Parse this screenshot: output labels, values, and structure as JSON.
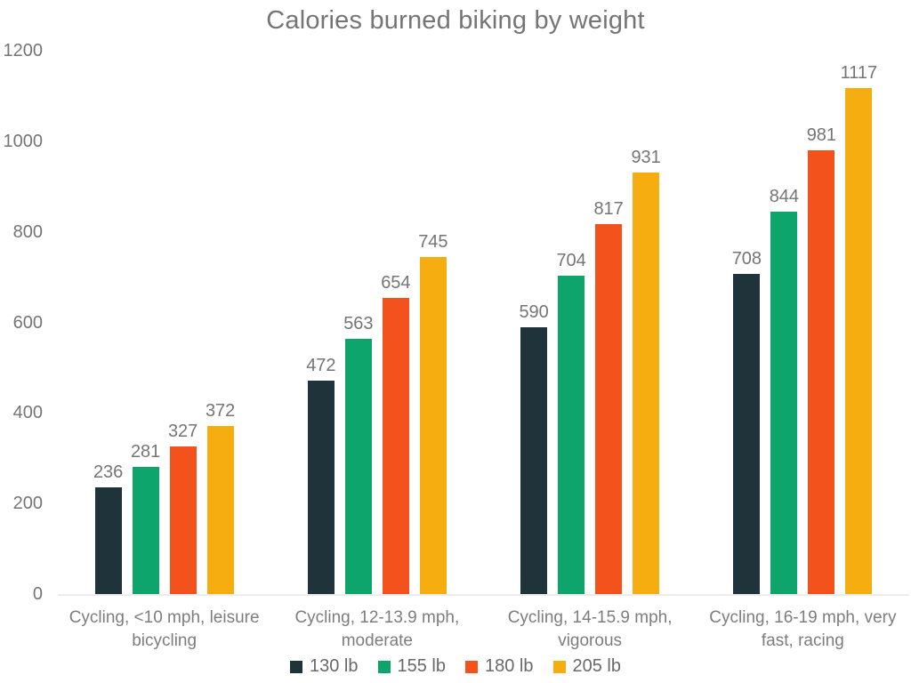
{
  "chart_data": {
    "type": "bar",
    "title": "Calories burned biking by weight",
    "categories": [
      "Cycling, <10 mph, leisure bicycling",
      "Cycling, 12-13.9 mph, moderate",
      "Cycling, 14-15.9 mph, vigorous",
      "Cycling, 16-19 mph, very fast, racing"
    ],
    "series": [
      {
        "name": "130 lb",
        "color": "#1e343a",
        "values": [
          236,
          472,
          590,
          708
        ]
      },
      {
        "name": "155 lb",
        "color": "#0ea56c",
        "values": [
          281,
          563,
          704,
          844
        ]
      },
      {
        "name": "180 lb",
        "color": "#f4521c",
        "values": [
          327,
          654,
          817,
          981
        ]
      },
      {
        "name": "205 lb",
        "color": "#f5ad0f",
        "values": [
          372,
          745,
          931,
          1117
        ]
      }
    ],
    "xlabel": "",
    "ylabel": "",
    "ylim": [
      0,
      1200
    ],
    "yticks": [
      0,
      200,
      400,
      600,
      800,
      1000,
      1200
    ],
    "grid": false,
    "legend_position": "bottom",
    "value_labels_shown": true
  },
  "style": {
    "text_color": "#757575",
    "baseline_color": "#ededed",
    "background": "#ffffff"
  }
}
